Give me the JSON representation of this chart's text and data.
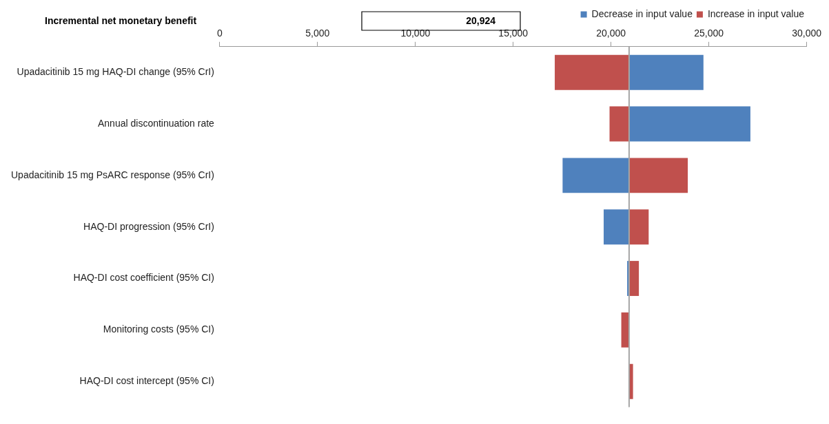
{
  "chart_data": {
    "type": "bar",
    "orientation": "horizontal",
    "title": "Incremental net monetary benefit",
    "categories": [
      "Upadacitinib 15 mg HAQ-DI change (95% CrI)",
      "Annual discontinuation rate",
      "Upadacitinib 15 mg PsARC response (95% CrI)",
      "HAQ-DI progression (95% CrI)",
      "HAQ-DI cost coefficient (95% CI)",
      "Monitoring costs (95% CI)",
      "HAQ-DI cost intercept (95% CI)"
    ],
    "series": [
      {
        "name": "Decrease in input value",
        "color": "#4f81bd",
        "base": [
          20924,
          20924,
          20924,
          20924,
          20924,
          null,
          null
        ],
        "values": [
          3800,
          6200,
          -3400,
          -1300,
          -100,
          null,
          null
        ]
      },
      {
        "name": "Increase in input value",
        "color": "#c0504d",
        "base": [
          20924,
          20924,
          20924,
          20924,
          20924,
          20924,
          20924
        ],
        "values": [
          -3800,
          -1000,
          3000,
          1000,
          500,
          -400,
          200
        ]
      }
    ],
    "xlim": [
      0,
      30000
    ],
    "xticks": [
      {
        "value": 0,
        "label": "0"
      },
      {
        "value": 5000,
        "label": "5,000"
      },
      {
        "value": 10000,
        "label": "10,000"
      },
      {
        "value": 15000,
        "label": "15,000"
      },
      {
        "value": 20000,
        "label": "20,000"
      },
      {
        "value": 25000,
        "label": "25,000"
      },
      {
        "value": 30000,
        "label": "30,000"
      }
    ],
    "ref_lines": [
      {
        "axis": "x",
        "value": 20924,
        "color": "#a6a6a6"
      }
    ],
    "annotations": [
      "20,924"
    ],
    "grid": false,
    "legend": "top right"
  }
}
